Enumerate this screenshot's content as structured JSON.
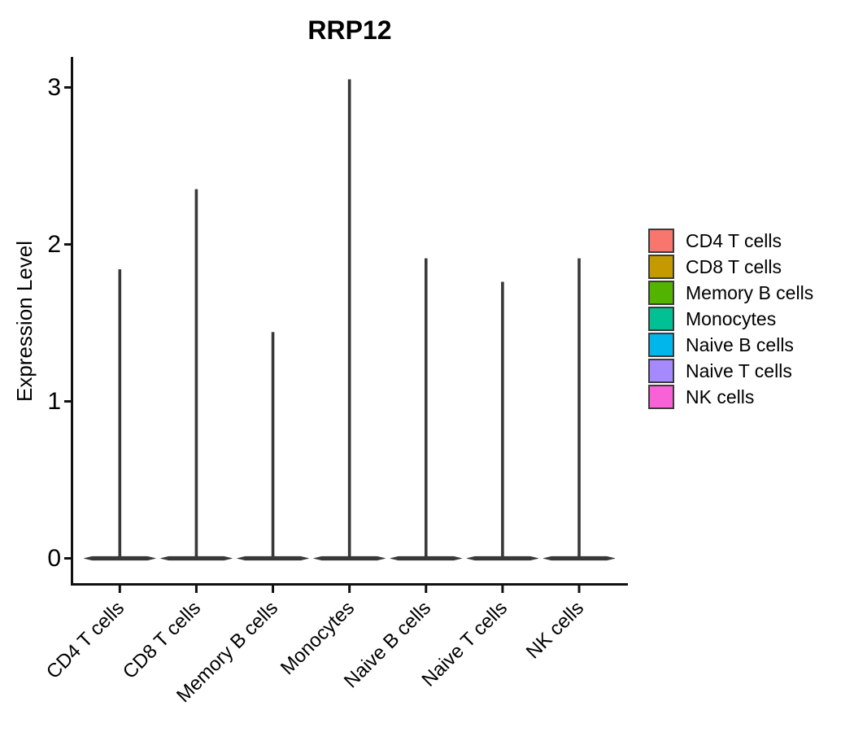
{
  "title": "RRP12",
  "y_axis": {
    "label": "Expression Level",
    "tick_labels": [
      "0",
      "1",
      "2",
      "3"
    ]
  },
  "x_axis": {
    "tick_labels": [
      "CD4 T cells",
      "CD8 T cells",
      "Memory B cells",
      "Monocytes",
      "Naive B cells",
      "Naive T cells",
      "NK cells"
    ]
  },
  "legend": {
    "items": [
      {
        "label": "CD4 T cells",
        "color": "#F8766D"
      },
      {
        "label": "CD8 T cells",
        "color": "#C49A00"
      },
      {
        "label": "Memory B cells",
        "color": "#53B400"
      },
      {
        "label": "Monocytes",
        "color": "#00C094"
      },
      {
        "label": "Naive B cells",
        "color": "#00B6EB"
      },
      {
        "label": "Naive T cells",
        "color": "#A58AFF"
      },
      {
        "label": "NK cells",
        "color": "#FB61D7"
      }
    ]
  },
  "colors": {
    "axis": "#111111",
    "violin_outline": "#383838",
    "background": "#ffffff"
  },
  "chart_data": {
    "type": "violin",
    "title": "RRP12",
    "xlabel": "",
    "ylabel": "Expression Level",
    "ylim": [
      0,
      3.2
    ],
    "yticks": [
      0,
      1,
      2,
      3
    ],
    "grid": "off",
    "legend_position": "right",
    "categories": [
      "CD4 T cells",
      "CD8 T cells",
      "Memory B cells",
      "Monocytes",
      "Naive B cells",
      "Naive T cells",
      "NK cells"
    ],
    "series": [
      {
        "name": "CD4 T cells",
        "color": "#F8766D",
        "max_expression": 1.84,
        "mode_expression": 0
      },
      {
        "name": "CD8 T cells",
        "color": "#C49A00",
        "max_expression": 2.35,
        "mode_expression": 0
      },
      {
        "name": "Memory B cells",
        "color": "#53B400",
        "max_expression": 1.44,
        "mode_expression": 0
      },
      {
        "name": "Monocytes",
        "color": "#00C094",
        "max_expression": 3.05,
        "mode_expression": 0
      },
      {
        "name": "Naive B cells",
        "color": "#00B6EB",
        "max_expression": 1.91,
        "mode_expression": 0
      },
      {
        "name": "Naive T cells",
        "color": "#A58AFF",
        "max_expression": 1.76,
        "mode_expression": 0
      },
      {
        "name": "NK cells",
        "color": "#FB61D7",
        "max_expression": 1.91,
        "mode_expression": 0
      }
    ],
    "shape_note": "each violin is a point mass at 0 with a very thin tail extending up to max_expression"
  }
}
